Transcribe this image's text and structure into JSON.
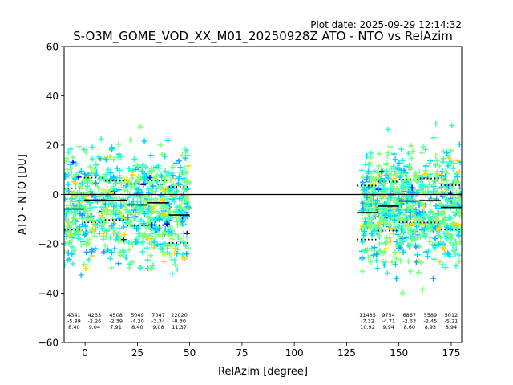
{
  "header": {
    "plot_date": "Plot date: 2025-09-29 12:14:32"
  },
  "chart_data": {
    "type": "scatter",
    "title": "S-O3M_GOME_VOD_XX_M01_20250928Z ATO - NTO vs RelAzim",
    "xlabel": "RelAzim [degree]",
    "ylabel": "ATO - NTO [DU]",
    "xlim": [
      -10,
      180
    ],
    "ylim": [
      -60,
      60
    ],
    "xticks": [
      0,
      25,
      50,
      75,
      100,
      125,
      150,
      175
    ],
    "yticks": [
      -60,
      -40,
      -20,
      0,
      20,
      40,
      60
    ],
    "zero_line": 0,
    "marker": "+",
    "point_colors": [
      "#7fff7f",
      "#2bffd0",
      "#00d4ff",
      "#1ea0ff",
      "#ffd700",
      "#c8ff3c",
      "#0000ff"
    ],
    "bins": [
      {
        "x_range": [
          -10,
          -0.5
        ],
        "count": "4341",
        "mean": "-5.89",
        "std": "8.40",
        "mean_val": -5.89,
        "std_val": 8.4
      },
      {
        "x_range": [
          -0.5,
          9.5
        ],
        "count": "4233",
        "mean": "-2.26",
        "std": "9.04",
        "mean_val": -2.26,
        "std_val": 9.04
      },
      {
        "x_range": [
          9.5,
          20
        ],
        "count": "4508",
        "mean": "-2.39",
        "std": "7.91",
        "mean_val": -2.39,
        "std_val": 7.91
      },
      {
        "x_range": [
          20,
          30
        ],
        "count": "5049",
        "mean": "-4.20",
        "std": "8.40",
        "mean_val": -4.2,
        "std_val": 8.4
      },
      {
        "x_range": [
          30,
          40
        ],
        "count": "7047",
        "mean": "-3.34",
        "std": "9.08",
        "mean_val": -3.34,
        "std_val": 9.08
      },
      {
        "x_range": [
          40,
          50
        ],
        "count": "22020",
        "mean": "-8.30",
        "std": "11.37",
        "mean_val": -8.3,
        "std_val": 11.37
      },
      {
        "x_range": [
          130,
          140
        ],
        "count": "11485",
        "mean": "-7.32",
        "std": "10.92",
        "mean_val": -7.32,
        "std_val": 10.92
      },
      {
        "x_range": [
          140,
          150
        ],
        "count": "9754",
        "mean": "-4.71",
        "std": "9.94",
        "mean_val": -4.71,
        "std_val": 9.94
      },
      {
        "x_range": [
          150,
          160
        ],
        "count": "6867",
        "mean": "-2.63",
        "std": "8.60",
        "mean_val": -2.63,
        "std_val": 8.6
      },
      {
        "x_range": [
          160,
          170
        ],
        "count": "5589",
        "mean": "-2.45",
        "std": "8.93",
        "mean_val": -2.45,
        "std_val": 8.93
      },
      {
        "x_range": [
          170,
          180
        ],
        "count": "5012",
        "mean": "-5.21",
        "std": "8.94",
        "mean_val": -5.21,
        "std_val": 8.94
      }
    ],
    "scatter_clusters": [
      {
        "x_range": [
          -10,
          50
        ],
        "y_center": -5,
        "y_spread": 20
      },
      {
        "x_range": [
          132,
          180
        ],
        "y_center": -5,
        "y_spread": 20
      }
    ]
  }
}
